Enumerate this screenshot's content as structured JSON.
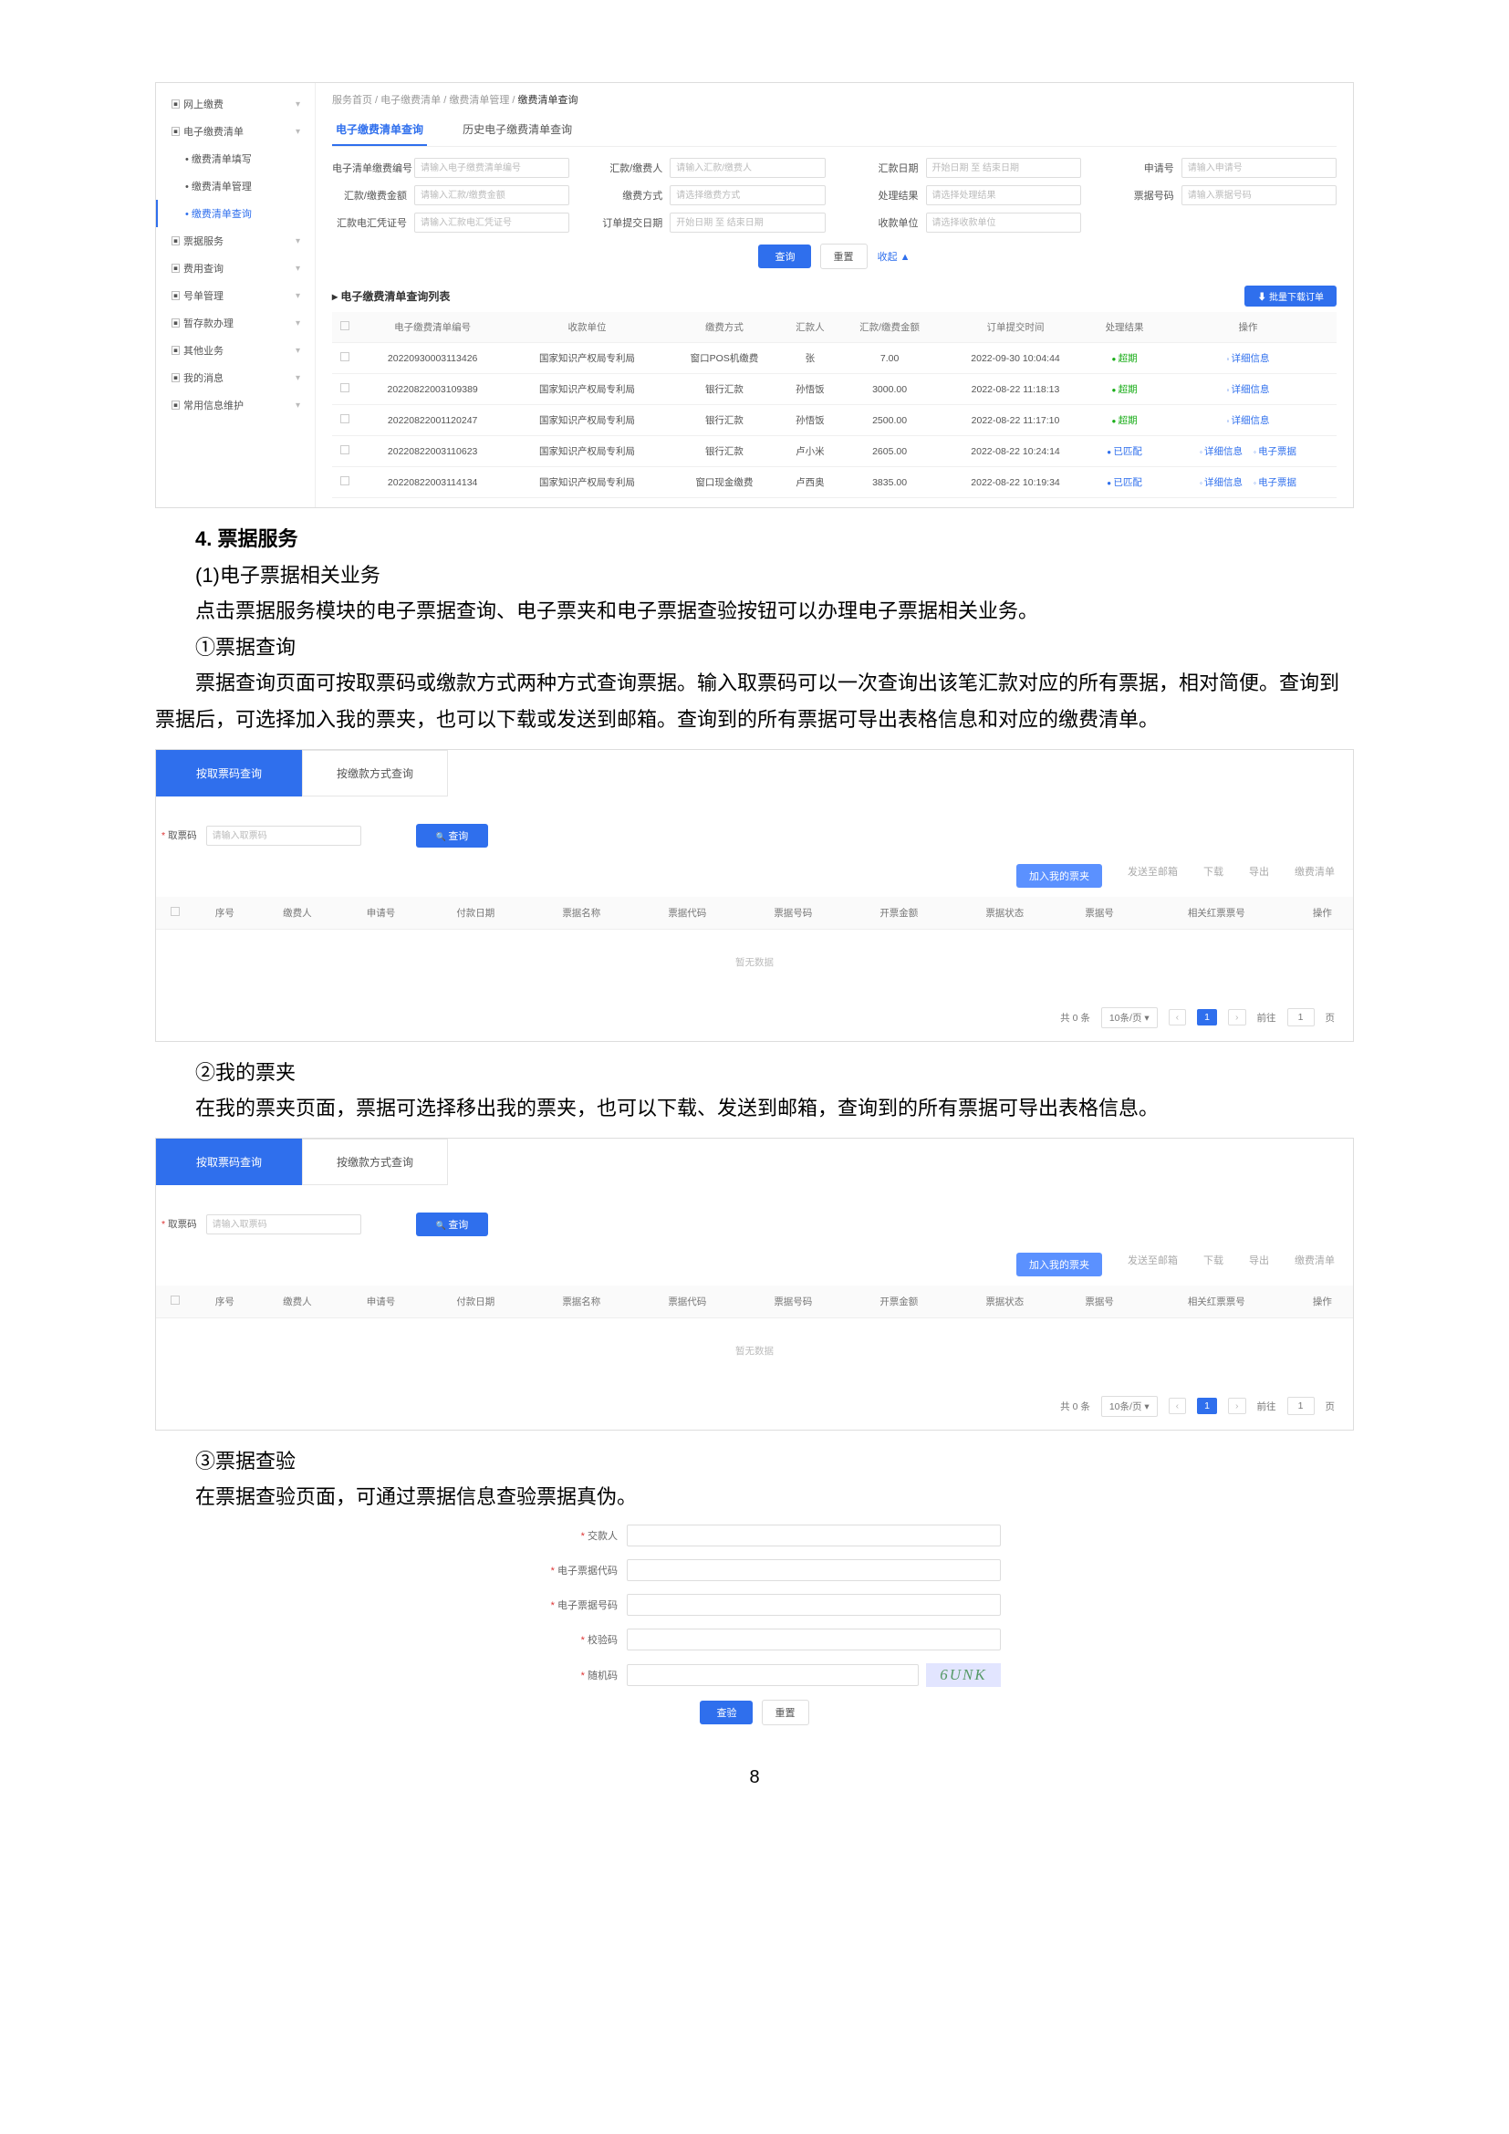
{
  "shot1": {
    "sidebar": [
      {
        "label": "网上缴费",
        "type": "item",
        "icon": ""
      },
      {
        "label": "电子缴费清单",
        "type": "item",
        "active": false
      },
      {
        "label": "缴费清单填写",
        "type": "sub"
      },
      {
        "label": "缴费清单管理",
        "type": "sub"
      },
      {
        "label": "缴费清单查询",
        "type": "sub",
        "active": true
      },
      {
        "label": "票据服务",
        "type": "item"
      },
      {
        "label": "费用查询",
        "type": "item"
      },
      {
        "label": "号单管理",
        "type": "item"
      },
      {
        "label": "暂存款办理",
        "type": "item"
      },
      {
        "label": "其他业务",
        "type": "item"
      },
      {
        "label": "我的消息",
        "type": "item"
      },
      {
        "label": "常用信息维护",
        "type": "item"
      }
    ],
    "crumbs": [
      "服务首页",
      "电子缴费清单",
      "缴费清单管理",
      "缴费清单查询"
    ],
    "tabs": [
      "电子缴费清单查询",
      "历史电子缴费清单查询"
    ],
    "filters": [
      {
        "label": "电子清单缴费编号",
        "ph": "请输入电子缴费清单编号"
      },
      {
        "label": "汇款/缴费人",
        "ph": "请输入汇款/缴费人"
      },
      {
        "label": "汇款日期",
        "ph": "开始日期 至 结束日期"
      },
      {
        "label": "申请号",
        "ph": "请输入申请号"
      },
      {
        "label": "汇款/缴费金额",
        "ph": "请输入汇款/缴费金额"
      },
      {
        "label": "缴费方式",
        "ph": "请选择缴费方式"
      },
      {
        "label": "处理结果",
        "ph": "请选择处理结果"
      },
      {
        "label": "票据号码",
        "ph": "请输入票据号码"
      },
      {
        "label": "汇款电汇凭证号",
        "ph": "请输入汇款电汇凭证号"
      },
      {
        "label": "订单提交日期",
        "ph": "开始日期 至 结束日期"
      },
      {
        "label": "收款单位",
        "ph": "请选择收款单位"
      }
    ],
    "btn_search": "查询",
    "btn_reset": "重置",
    "btn_more": "收起 ▲",
    "list_title": "电子缴费清单查询列表",
    "btn_batch": "批量下载订单",
    "cols": [
      "",
      "电子缴费清单编号",
      "收款单位",
      "缴费方式",
      "汇款人",
      "汇款/缴费金额",
      "订单提交时间",
      "处理结果",
      "操作"
    ],
    "rows": [
      {
        "no": "20220930003113426",
        "org": "国家知识产权局专利局",
        "way": "窗口POS机缴费",
        "payer": "张",
        "amt": "7.00",
        "time": "2022-09-30 10:04:44",
        "st": "超期",
        "stc": "g",
        "ops": [
          "详细信息"
        ]
      },
      {
        "no": "20220822003109389",
        "org": "国家知识产权局专利局",
        "way": "银行汇款",
        "payer": "孙悟饭",
        "amt": "3000.00",
        "time": "2022-08-22 11:18:13",
        "st": "超期",
        "stc": "g",
        "ops": [
          "详细信息"
        ]
      },
      {
        "no": "20220822001120247",
        "org": "国家知识产权局专利局",
        "way": "银行汇款",
        "payer": "孙悟饭",
        "amt": "2500.00",
        "time": "2022-08-22 11:17:10",
        "st": "超期",
        "stc": "g",
        "ops": [
          "详细信息"
        ]
      },
      {
        "no": "20220822003110623",
        "org": "国家知识产权局专利局",
        "way": "银行汇款",
        "payer": "卢小米",
        "amt": "2605.00",
        "time": "2022-08-22 10:24:14",
        "st": "已匹配",
        "stc": "b",
        "ops": [
          "详细信息",
          "电子票据"
        ]
      },
      {
        "no": "20220822003114134",
        "org": "国家知识产权局专利局",
        "way": "窗口现金缴费",
        "payer": "卢西奥",
        "amt": "3835.00",
        "time": "2022-08-22 10:19:34",
        "st": "已匹配",
        "stc": "b",
        "ops": [
          "详细信息",
          "电子票据"
        ]
      }
    ]
  },
  "text": {
    "h4": "4. 票据服务",
    "h5a": "(1)电子票据相关业务",
    "p1": "点击票据服务模块的电子票据查询、电子票夹和电子票据查验按钮可以办理电子票据相关业务。",
    "s1": "①票据查询",
    "p2": "票据查询页面可按取票码或缴款方式两种方式查询票据。输入取票码可以一次查询出该笔汇款对应的所有票据，相对简便。查询到票据后，可选择加入我的票夹，也可以下载或发送到邮箱。查询到的所有票据可导出表格信息和对应的缴费清单。",
    "s2": "②我的票夹",
    "p3": "在我的票夹页面，票据可选择移出我的票夹，也可以下载、发送到邮箱，查询到的所有票据可导出表格信息。",
    "s3": "③票据查验",
    "p4": "在票据查验页面，可通过票据信息查验票据真伪。"
  },
  "shot2": {
    "tabs": [
      "按取票码查询",
      "按缴款方式查询"
    ],
    "search_label": "取票码",
    "search_ph": "请输入取票码",
    "btn": "查询",
    "toolbar": [
      "加入我的票夹",
      "发送至邮箱",
      "下载",
      "导出",
      "缴费清单"
    ],
    "cols": [
      "",
      "序号",
      "缴费人",
      "申请号",
      "付款日期",
      "票据名称",
      "票据代码",
      "票据号码",
      "开票金额",
      "票据状态",
      "票据号",
      "相关红票票号",
      "操作"
    ],
    "nodata": "暂无数据",
    "pager_total": "共 0 条",
    "pager_size": "10条/页",
    "pager_goto": "前往",
    "pager_page": "1",
    "pager_unit": "页"
  },
  "shot3": {
    "tabs": [
      "按取票码查询",
      "按缴款方式查询"
    ],
    "search_label": "取票码",
    "search_ph": "请输入取票码",
    "btn": "查询",
    "toolbar": [
      "加入我的票夹",
      "发送至邮箱",
      "下载",
      "导出",
      "缴费清单"
    ],
    "cols": [
      "",
      "序号",
      "缴费人",
      "申请号",
      "付款日期",
      "票据名称",
      "票据代码",
      "票据号码",
      "开票金额",
      "票据状态",
      "票据号",
      "相关红票票号",
      "操作"
    ],
    "nodata": "暂无数据",
    "pager_total": "共 0 条",
    "pager_size": "10条/页",
    "pager_goto": "前往",
    "pager_page": "1",
    "pager_unit": "页"
  },
  "shot4": {
    "fields": [
      "交款人",
      "电子票据代码",
      "电子票据号码",
      "校验码",
      "随机码"
    ],
    "captcha": "6UNK",
    "btn_q": "查验",
    "btn_r": "重置"
  },
  "pagenum": "8"
}
